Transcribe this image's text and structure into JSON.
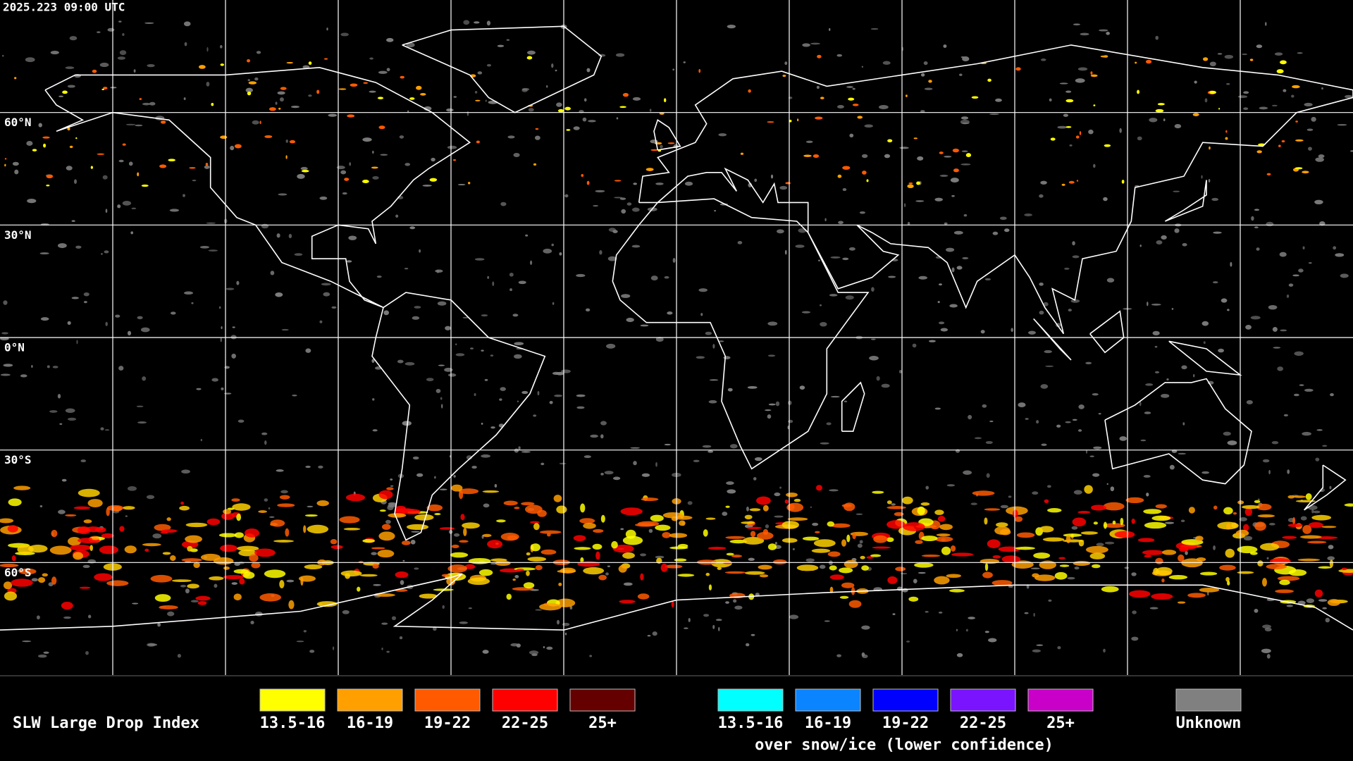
{
  "timestamp": "2025.223 09:00 UTC",
  "map": {
    "latitude_labels": [
      "60°N",
      "30°N",
      "0°N",
      "30°S",
      "60°S"
    ]
  },
  "legend": {
    "title": "SLW Large Drop Index",
    "groups": [
      {
        "items": [
          {
            "label": "13.5-16",
            "color": "#ffff00"
          },
          {
            "label": "16-19",
            "color": "#ff9f00"
          },
          {
            "label": "19-22",
            "color": "#ff5a00"
          },
          {
            "label": "22-25",
            "color": "#ff0000"
          },
          {
            "label": "25+",
            "color": "#640000"
          }
        ]
      },
      {
        "items": [
          {
            "label": "13.5-16",
            "color": "#00ffff"
          },
          {
            "label": "16-19",
            "color": "#0a84ff"
          },
          {
            "label": "19-22",
            "color": "#0000ff"
          },
          {
            "label": "22-25",
            "color": "#7a14ff"
          },
          {
            "label": "25+",
            "color": "#c800c8"
          }
        ],
        "caption": "over snow/ice (lower confidence)"
      },
      {
        "items": [
          {
            "label": "Unknown",
            "color": "#808080"
          }
        ]
      }
    ]
  }
}
